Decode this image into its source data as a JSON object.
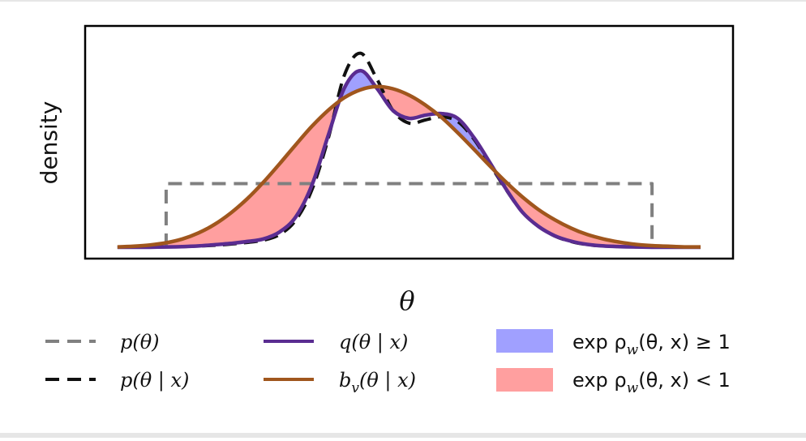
{
  "chart_data": {
    "type": "line",
    "title": "",
    "xlabel": "θ",
    "ylabel": "density",
    "xlim": [
      -4,
      4
    ],
    "ylim": [
      0,
      0.67
    ],
    "ticks_shown": false,
    "grid": false,
    "legend_position": "below",
    "x": [
      -3.6,
      -3.4,
      -3.2,
      -3.0,
      -2.8,
      -2.6,
      -2.4,
      -2.2,
      -2.0,
      -1.8,
      -1.6,
      -1.4,
      -1.2,
      -1.0,
      -0.8,
      -0.6,
      -0.4,
      -0.2,
      0.0,
      0.2,
      0.4,
      0.6,
      0.8,
      1.0,
      1.2,
      1.4,
      1.6,
      1.8,
      2.0,
      2.2,
      2.4,
      2.6,
      2.8,
      3.0,
      3.2,
      3.4,
      3.6
    ],
    "series": [
      {
        "name": "p(θ)",
        "style": "gray-dashed",
        "values": [
          0,
          0,
          0.2,
          0.2,
          0.2,
          0.2,
          0.2,
          0.2,
          0.2,
          0.2,
          0.2,
          0.2,
          0.2,
          0.2,
          0.2,
          0.2,
          0.2,
          0.2,
          0.2,
          0.2,
          0.2,
          0.2,
          0.2,
          0.2,
          0.2,
          0.2,
          0.2,
          0.2,
          0.2,
          0.2,
          0.2,
          0.2,
          0.2,
          0.2,
          0.2,
          0,
          0
        ]
      },
      {
        "name": "p(θ | x)",
        "style": "black-dashed",
        "values": [
          0.0,
          0.0,
          0.0,
          0.001,
          0.002,
          0.004,
          0.006,
          0.01,
          0.015,
          0.022,
          0.04,
          0.085,
          0.18,
          0.34,
          0.54,
          0.61,
          0.53,
          0.43,
          0.39,
          0.4,
          0.41,
          0.395,
          0.34,
          0.26,
          0.18,
          0.11,
          0.065,
          0.035,
          0.018,
          0.008,
          0.004,
          0.002,
          0.001,
          0.0,
          0.0,
          0.0,
          0.0
        ]
      },
      {
        "name": "q(θ | x)",
        "style": "purple-solid",
        "values": [
          0.0,
          0.0,
          0.0,
          0.001,
          0.002,
          0.004,
          0.008,
          0.012,
          0.018,
          0.026,
          0.048,
          0.095,
          0.195,
          0.35,
          0.5,
          0.555,
          0.5,
          0.43,
          0.405,
          0.415,
          0.42,
          0.405,
          0.345,
          0.265,
          0.182,
          0.11,
          0.065,
          0.036,
          0.019,
          0.009,
          0.004,
          0.002,
          0.001,
          0.0,
          0.0,
          0.0,
          0.0
        ]
      },
      {
        "name": "b_v(θ | x)",
        "style": "brown-solid",
        "values": [
          0.001,
          0.003,
          0.007,
          0.014,
          0.026,
          0.045,
          0.072,
          0.108,
          0.152,
          0.204,
          0.262,
          0.322,
          0.38,
          0.43,
          0.47,
          0.495,
          0.505,
          0.498,
          0.478,
          0.447,
          0.408,
          0.36,
          0.308,
          0.255,
          0.204,
          0.158,
          0.118,
          0.086,
          0.06,
          0.04,
          0.026,
          0.016,
          0.009,
          0.005,
          0.003,
          0.001,
          0.001
        ]
      }
    ],
    "fills": [
      {
        "label": "exp ρw(θ, x) ≥ 1",
        "color": "#a0a0ff",
        "between": [
          "q(θ | x)",
          "b_v(θ | x)"
        ],
        "where": "q >= b"
      },
      {
        "label": "exp ρw(θ, x) < 1",
        "color": "#ff9f9f",
        "between": [
          "q(θ | x)",
          "b_v(θ | x)"
        ],
        "where": "q < b"
      }
    ]
  },
  "colors": {
    "prior": "#808080",
    "posterior": "#111111",
    "q": "#5a2c91",
    "b": "#a0561d",
    "fill_ge": "#a0a0ff",
    "fill_lt": "#ff9f9f"
  },
  "legend": {
    "items": [
      {
        "label": "p(θ)",
        "kind": "line",
        "style": "dashed",
        "color": "#808080"
      },
      {
        "label": "p(θ | x)",
        "kind": "line",
        "style": "dashed",
        "color": "#111111"
      },
      {
        "label": "q(θ | x)",
        "kind": "line",
        "style": "solid",
        "color": "#5a2c91"
      },
      {
        "label": "b",
        "sub": "v",
        "rest": "(θ | x)",
        "kind": "line",
        "style": "solid",
        "color": "#a0561d"
      },
      {
        "label_prefix": "exp ρ",
        "sub": "w",
        "label_rest": "(θ, x) ≥ 1",
        "kind": "patch",
        "color": "#a0a0ff"
      },
      {
        "label_prefix": "exp ρ",
        "sub": "w",
        "label_rest": "(θ, x) < 1",
        "kind": "patch",
        "color": "#ff9f9f"
      }
    ]
  }
}
